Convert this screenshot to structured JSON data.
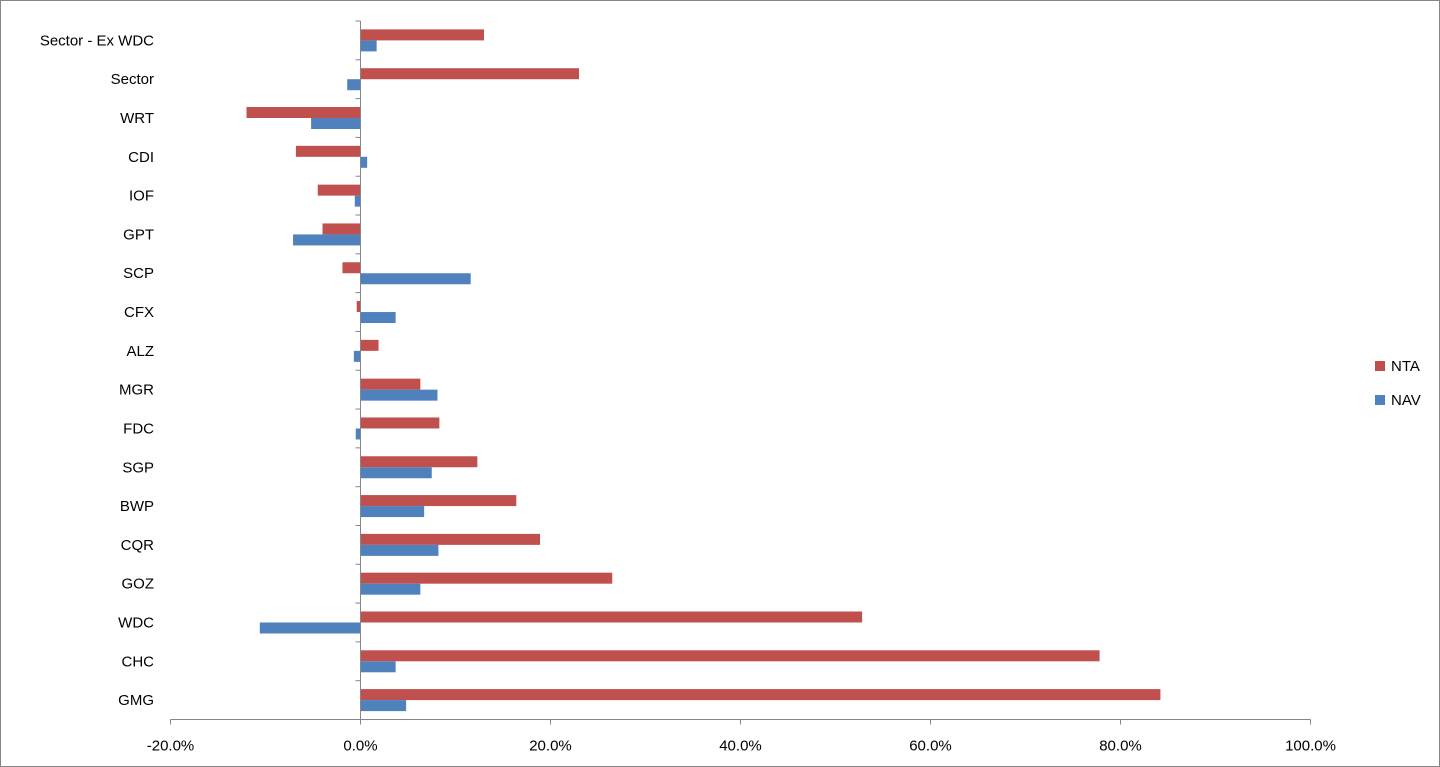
{
  "chart_data": {
    "type": "bar",
    "orientation": "horizontal",
    "categories": [
      "Sector - Ex WDC",
      "Sector",
      "WRT",
      "CDI",
      "IOF",
      "GPT",
      "SCP",
      "CFX",
      "ALZ",
      "MGR",
      "FDC",
      "SGP",
      "BWP",
      "CQR",
      "GOZ",
      "WDC",
      "CHC",
      "GMG"
    ],
    "series": [
      {
        "name": "NTA",
        "color": "#C0504D",
        "values": [
          13.0,
          23.0,
          -12.0,
          -6.8,
          -4.5,
          -4.0,
          -1.9,
          -0.4,
          1.9,
          6.3,
          8.3,
          12.3,
          16.4,
          18.9,
          26.5,
          52.8,
          77.8,
          84.2
        ]
      },
      {
        "name": "NAV",
        "color": "#4F81BD",
        "values": [
          1.7,
          -1.4,
          -5.2,
          0.7,
          -0.6,
          -7.1,
          11.6,
          3.7,
          -0.7,
          8.1,
          -0.5,
          7.5,
          6.7,
          8.2,
          6.3,
          -10.6,
          3.7,
          4.8
        ]
      }
    ],
    "xlim": [
      -20,
      100
    ],
    "xticks": [
      -20,
      0,
      20,
      40,
      60,
      80,
      100
    ],
    "xtick_labels": [
      "-20.0%",
      "0.0%",
      "20.0%",
      "40.0%",
      "60.0%",
      "80.0%",
      "100.0%"
    ],
    "grid": false,
    "legend": "right"
  }
}
